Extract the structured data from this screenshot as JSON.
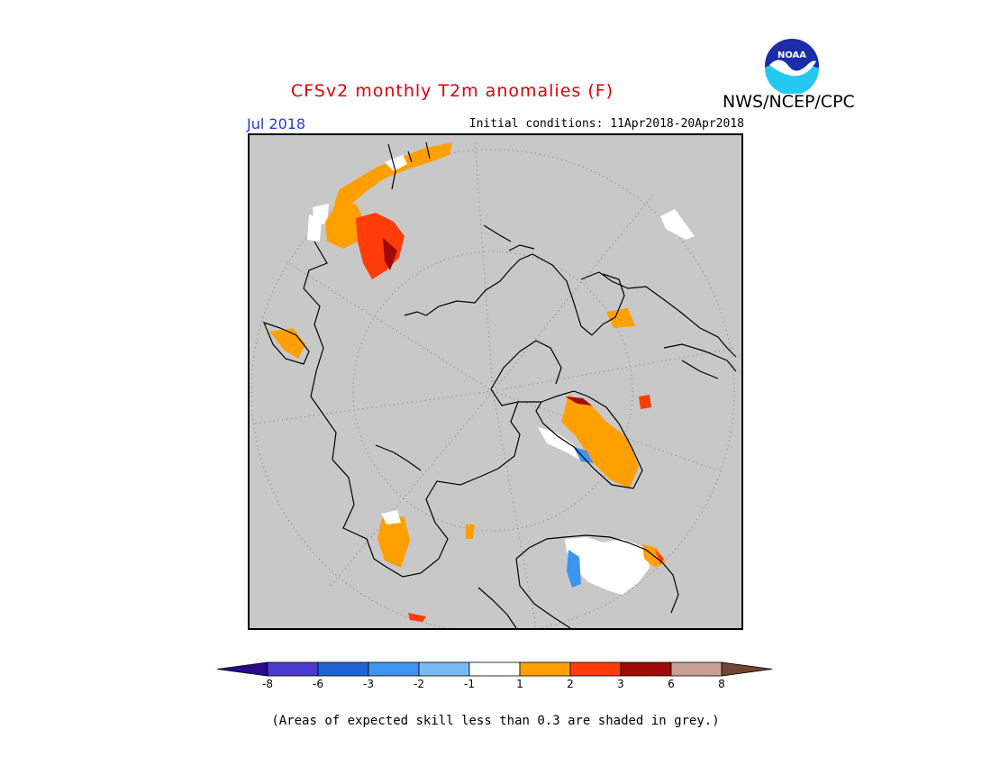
{
  "title": "CFSv2 monthly T2m anomalies (F)",
  "agency": "NWS/NCEP/CPC",
  "logo_text": "NOAA",
  "month": "Jul 2018",
  "initial_conditions": "Initial conditions: 11Apr2018-20Apr2018",
  "footnote": "(Areas of expected skill less than 0.3 are shaded in grey.)",
  "colors": {
    "title": "#e00000",
    "month": "#2a37d8",
    "low_skill": "#c8c8c8"
  },
  "colorbar": {
    "unit": "F",
    "boundaries": [
      "-8",
      "-6",
      "-3",
      "-2",
      "-1",
      "1",
      "2",
      "3",
      "6",
      "8"
    ],
    "bins": [
      {
        "range": "< -8",
        "color": "#2a0a8a"
      },
      {
        "range": "-8 to -6",
        "color": "#4a3ad0"
      },
      {
        "range": "-6 to -3",
        "color": "#1e64d2"
      },
      {
        "range": "-3 to -2",
        "color": "#3c96ee"
      },
      {
        "range": "-2 to -1",
        "color": "#78b9f5"
      },
      {
        "range": "-1 to 1",
        "color": "#ffffff"
      },
      {
        "range": "1 to 2",
        "color": "#ffa000"
      },
      {
        "range": "2 to 3",
        "color": "#ff3c0a"
      },
      {
        "range": "3 to 6",
        "color": "#a00a0a"
      },
      {
        "range": "6 to 8",
        "color": "#c8a096"
      },
      {
        "range": "> 8",
        "color": "#6e4632"
      }
    ]
  }
}
